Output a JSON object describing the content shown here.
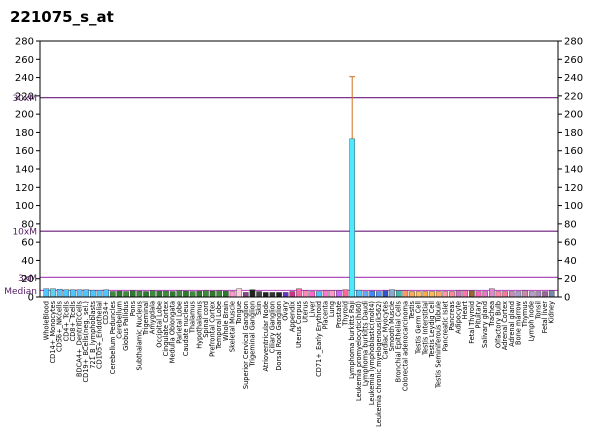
{
  "chart_data": {
    "type": "bar",
    "title": "221075_s_at",
    "ylim": [
      0,
      280
    ],
    "yticks": [
      0,
      20,
      40,
      60,
      80,
      100,
      120,
      140,
      160,
      180,
      200,
      220,
      240,
      260,
      280
    ],
    "reference_lines": [
      {
        "label": "30xM",
        "value": 218,
        "color": "#6a1a7a"
      },
      {
        "label": "10xM",
        "value": 72,
        "color": "#6a1a7a"
      },
      {
        "label": "3xM",
        "value": 21.5,
        "color": "#b04dbf"
      },
      {
        "label": "Median",
        "value": 7.2,
        "color": "#c050c8"
      }
    ],
    "categories": [
      "WholeBlood",
      "CD14+_Monocytes",
      "CD56+_NKcells",
      "CD4+_Tcells",
      "CD8+_Tcells",
      "BDCA4+_DentriticCells",
      "CD19+_BCells(neg._sel.)",
      "721_B_lymphoblasts",
      "CD105+_Endothelial",
      "CD34+",
      "Cerebellum Peduncles",
      "Cerebellum",
      "Globus Pallidus",
      "Pons",
      "Subthalamic Nucleus",
      "Trigeminal",
      "Amygdala",
      "Occipital Lobe",
      "Cingulate Cortex",
      "Medulla Oblongata",
      "Parietal Lobe",
      "Caudate nucleus",
      "Thalamus",
      "Hypothalamus",
      "Spinal cord",
      "Prefrontal Cortex",
      "Temporal Lobe",
      "Whole Brain",
      "Skeletal Muscle",
      "Tongue",
      "Superior Cervical Ganglion",
      "Trigeminal Ganglion",
      "Skin",
      "Atrioventricular Node",
      "Ciliary Ganglion",
      "Dorsal Root Ganglion",
      "Ovary",
      "Appendix",
      "Uterus Corpus",
      "Uterus",
      "Liver",
      "CD71+_Early Erythroid",
      "Placenta",
      "Lung",
      "Prostate",
      "Thyroid",
      "Lymphoma burkitts Raji",
      "Leukemia promyelocytic(hl60)",
      "Lymphoma burkitts Daudi",
      "Leukemia lymphoblastic(molt4)",
      "Leukemia chronic myelogenous(k562)",
      "Cardiac Myocytes",
      "Smooth Muscle",
      "Bronchial Epithelial Cells",
      "Colorectal adenocarcinoma",
      "Testis",
      "Testis Germ Cell",
      "Testis Interstitial",
      "Testis Leydig Cell",
      "Testis Seminiferous Tubule",
      "Pancreatic Islet",
      "Pancreas",
      "Adipocyte",
      "Heart",
      "Fetal Thyroid",
      "Pituitary",
      "Salivary gland",
      "Trachea",
      "Olfactory Bulb",
      "Adrenal Cortex",
      "Adrenal gland",
      "Bone marrow",
      "Thymus",
      "Lymph node",
      "Tonsil",
      "Fetal liver",
      "Kidney"
    ],
    "values": [
      9,
      9,
      8.5,
      8,
      8,
      8,
      8,
      7.5,
      7.5,
      8,
      6,
      6.5,
      6,
      7,
      6.5,
      6,
      7,
      6.5,
      6.5,
      6,
      7,
      6.5,
      6,
      6.5,
      7,
      6.5,
      7,
      6.5,
      6,
      9,
      5,
      8,
      6,
      5,
      5,
      5,
      5,
      6,
      9,
      7,
      6,
      6,
      7,
      7,
      7,
      8,
      173,
      7.5,
      6,
      6.5,
      6,
      7,
      8,
      7,
      7,
      6,
      6,
      6,
      6,
      6,
      6,
      6,
      7,
      7,
      7,
      6,
      6,
      9,
      6,
      6,
      6,
      6,
      7,
      6,
      6,
      6,
      7
    ],
    "errors": [
      0,
      0,
      0,
      0,
      0,
      0,
      0,
      0,
      0,
      0,
      0,
      0,
      0,
      0,
      0,
      0,
      0,
      0,
      0,
      0,
      0,
      0,
      0,
      0,
      0,
      0,
      0,
      0,
      0,
      0,
      0,
      0,
      0,
      0,
      0,
      0,
      0,
      0,
      0,
      0,
      0,
      0,
      0,
      0,
      0,
      0,
      68,
      0,
      0,
      0,
      0,
      0,
      0,
      0,
      0,
      0,
      0,
      0,
      0,
      0,
      0,
      0,
      0,
      0,
      0,
      0,
      0,
      0,
      0,
      0,
      0,
      0,
      0,
      0,
      0,
      0,
      0
    ],
    "bar_colors": [
      "#4fc4ff",
      "#5fd0f0",
      "#4fc4ff",
      "#4fc4ff",
      "#4fc4ff",
      "#4fc4ff",
      "#4fc4ff",
      "#4fc4ff",
      "#4fc4ff",
      "#4fc4ff",
      "#3d8b3d",
      "#2e7a2e",
      "#3d8b3d",
      "#2e7a2e",
      "#3d8b3d",
      "#2e7a2e",
      "#3d8b3d",
      "#2e7a2e",
      "#3d8b3d",
      "#2e7a2e",
      "#3d8b3d",
      "#2e7a2e",
      "#3d8b3d",
      "#2e7a2e",
      "#3d8b3d",
      "#2e7a2e",
      "#3d8b3d",
      "#2e7a2e",
      "#ff99cc",
      "#ffccdd",
      "#884488",
      "#222222",
      "#444444",
      "#222222",
      "#333333",
      "#222222",
      "#6633cc",
      "#cc3388",
      "#ff66aa",
      "#ff88bb",
      "#ff66cc",
      "#4fc4ff",
      "#ff77cc",
      "#ff99cc",
      "#cc66ff",
      "#ff6699",
      "#4fe8ff",
      "#4fc4ff",
      "#66aaff",
      "#4488ff",
      "#5599ff",
      "#3355cc",
      "#88aacc",
      "#44bbaa",
      "#ff9966",
      "#ffaa55",
      "#ffbb66",
      "#ffaa44",
      "#ffbb55",
      "#ffaa66",
      "#ff99aa",
      "#ff8899",
      "#cc77bb",
      "#ff77aa",
      "#996633",
      "#ff66bb",
      "#ee77cc",
      "#dd88cc",
      "#ff88aa",
      "#ff7799",
      "#cc88bb",
      "#aa99cc",
      "#cc88aa",
      "#bb99cc",
      "#aa88bb",
      "#996699",
      "#7788aa"
    ]
  }
}
